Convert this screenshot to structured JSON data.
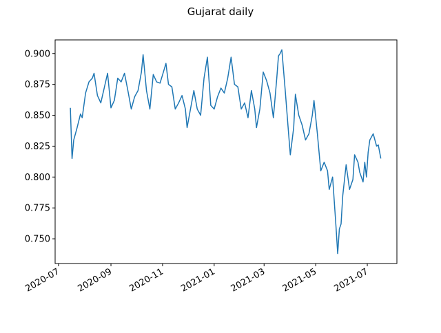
{
  "chart_data": {
    "type": "line",
    "title": "Gujarat daily",
    "x": [
      14,
      16,
      18,
      22,
      26,
      28,
      32,
      36,
      40,
      42,
      46,
      50,
      54,
      58,
      62,
      66,
      70,
      74,
      78,
      82,
      86,
      90,
      94,
      98,
      100,
      104,
      108,
      112,
      116,
      120,
      124,
      127,
      130,
      134,
      138,
      142,
      146,
      150,
      152,
      156,
      160,
      164,
      168,
      172,
      176,
      180,
      184,
      188,
      192,
      196,
      200,
      204,
      208,
      212,
      216,
      220,
      224,
      228,
      232,
      234,
      238,
      242,
      246,
      250,
      254,
      258,
      260,
      262,
      264,
      268,
      272,
      274,
      278,
      280,
      284,
      288,
      292,
      296,
      300,
      302,
      306,
      310,
      314,
      318,
      320,
      324,
      328,
      330,
      332,
      334,
      336,
      340,
      344,
      348,
      350,
      354,
      356,
      360,
      362,
      364,
      366,
      368,
      372,
      376,
      378,
      381
    ],
    "series": [
      {
        "name": "Gujarat",
        "color": "#1f77b4",
        "values": [
          0.856,
          0.815,
          0.83,
          0.84,
          0.851,
          0.848,
          0.868,
          0.877,
          0.88,
          0.884,
          0.866,
          0.86,
          0.872,
          0.884,
          0.856,
          0.862,
          0.88,
          0.877,
          0.884,
          0.87,
          0.855,
          0.865,
          0.87,
          0.885,
          0.899,
          0.87,
          0.855,
          0.883,
          0.877,
          0.876,
          0.885,
          0.892,
          0.875,
          0.873,
          0.855,
          0.86,
          0.866,
          0.855,
          0.84,
          0.855,
          0.87,
          0.855,
          0.85,
          0.88,
          0.897,
          0.858,
          0.855,
          0.865,
          0.872,
          0.868,
          0.88,
          0.897,
          0.875,
          0.873,
          0.855,
          0.86,
          0.848,
          0.87,
          0.855,
          0.84,
          0.855,
          0.885,
          0.878,
          0.868,
          0.848,
          0.88,
          0.898,
          0.9,
          0.903,
          0.87,
          0.835,
          0.818,
          0.84,
          0.867,
          0.85,
          0.842,
          0.83,
          0.835,
          0.85,
          0.862,
          0.835,
          0.805,
          0.812,
          0.805,
          0.79,
          0.8,
          0.76,
          0.738,
          0.758,
          0.762,
          0.785,
          0.81,
          0.79,
          0.798,
          0.818,
          0.812,
          0.804,
          0.796,
          0.812,
          0.8,
          0.82,
          0.83,
          0.835,
          0.825,
          0.826,
          0.815
        ]
      }
    ],
    "xlim": [
      -4,
      400
    ],
    "xticks": [
      {
        "value": 0,
        "label": "2020-07"
      },
      {
        "value": 62,
        "label": "2020-09"
      },
      {
        "value": 123,
        "label": "2020-11"
      },
      {
        "value": 184,
        "label": "2021-01"
      },
      {
        "value": 243,
        "label": "2021-03"
      },
      {
        "value": 304,
        "label": "2021-05"
      },
      {
        "value": 365,
        "label": "2021-07"
      }
    ],
    "ylim": [
      0.73,
      0.911
    ],
    "yticks": [
      {
        "value": 0.75,
        "label": "0.750"
      },
      {
        "value": 0.775,
        "label": "0.775"
      },
      {
        "value": 0.8,
        "label": "0.800"
      },
      {
        "value": 0.825,
        "label": "0.825"
      },
      {
        "value": 0.85,
        "label": "0.850"
      },
      {
        "value": 0.875,
        "label": "0.875"
      },
      {
        "value": 0.9,
        "label": "0.900"
      }
    ],
    "grid": false
  }
}
